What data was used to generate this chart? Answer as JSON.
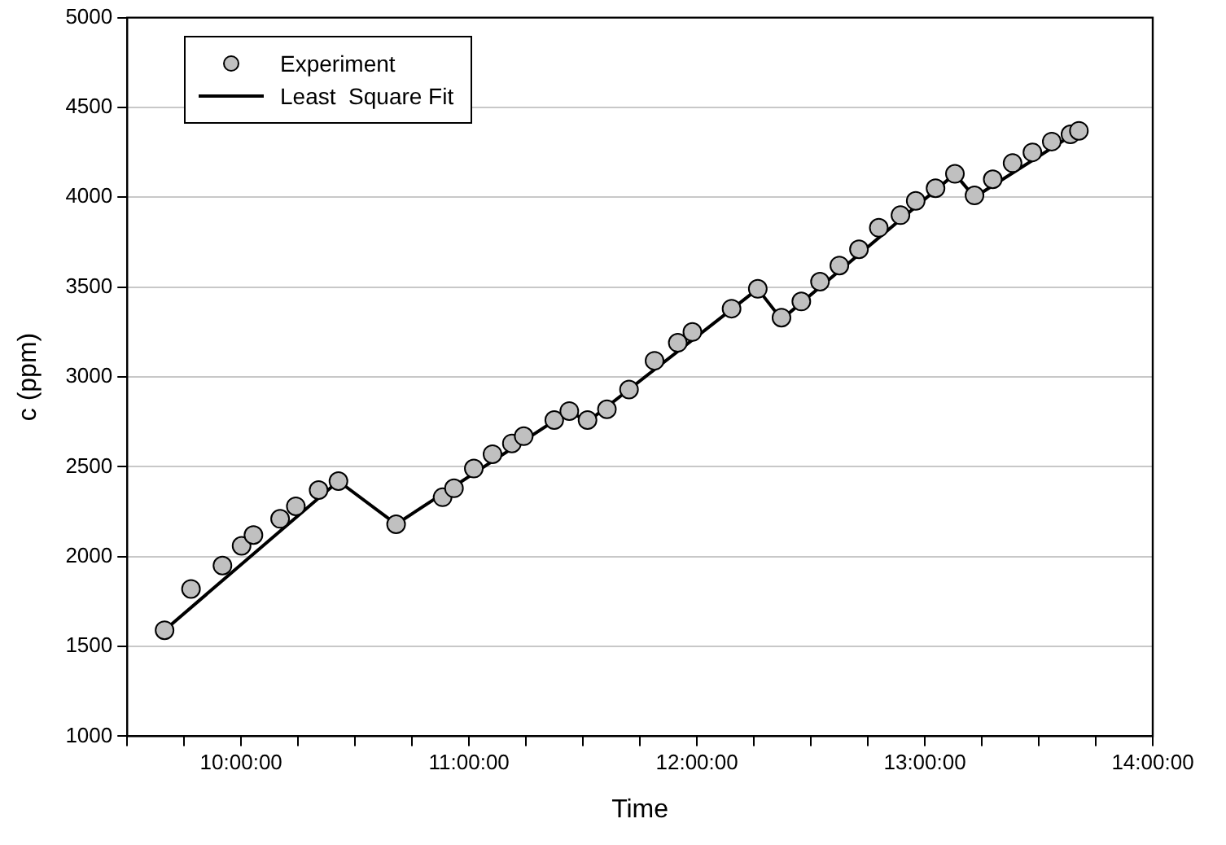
{
  "chart_data": {
    "type": "scatter",
    "xlabel": "Time",
    "ylabel": "c (ppm)",
    "xlim": [
      9.5,
      14
    ],
    "ylim": [
      1000,
      5000
    ],
    "xticks": [
      {
        "value": 9.5,
        "label": null
      },
      {
        "value": 9.75,
        "label": null
      },
      {
        "value": 10,
        "label": "10:00:00"
      },
      {
        "value": 10.25,
        "label": null
      },
      {
        "value": 10.5,
        "label": null
      },
      {
        "value": 10.75,
        "label": null
      },
      {
        "value": 11,
        "label": "11:00:00"
      },
      {
        "value": 11.25,
        "label": null
      },
      {
        "value": 11.5,
        "label": null
      },
      {
        "value": 11.75,
        "label": null
      },
      {
        "value": 12,
        "label": "12:00:00"
      },
      {
        "value": 12.25,
        "label": null
      },
      {
        "value": 12.5,
        "label": null
      },
      {
        "value": 12.75,
        "label": null
      },
      {
        "value": 13,
        "label": "13:00:00"
      },
      {
        "value": 13.25,
        "label": null
      },
      {
        "value": 13.5,
        "label": null
      },
      {
        "value": 13.75,
        "label": null
      },
      {
        "value": 14,
        "label": "14:00:00"
      }
    ],
    "yticks": [
      1000,
      1500,
      2000,
      2500,
      3000,
      3500,
      4000,
      4500,
      5000
    ],
    "grid": "y",
    "legend": "top left",
    "series": [
      {
        "name": "Experiment",
        "type": "scatter",
        "marker": "circle",
        "color": "#c0c0c0",
        "x": [
          9.664,
          9.78,
          9.918,
          10.002,
          10.054,
          10.171,
          10.24,
          10.34,
          10.427,
          10.68,
          10.884,
          10.934,
          11.021,
          11.103,
          11.188,
          11.24,
          11.374,
          11.44,
          11.52,
          11.605,
          11.702,
          11.814,
          11.916,
          11.98,
          12.152,
          12.267,
          12.371,
          12.458,
          12.54,
          12.625,
          12.711,
          12.798,
          12.893,
          12.96,
          13.047,
          13.132,
          13.218,
          13.298,
          13.385,
          13.472,
          13.557,
          13.639,
          13.676
        ],
        "values": [
          1590,
          1820,
          1950,
          2060,
          2120,
          2210,
          2280,
          2370,
          2420,
          2180,
          2330,
          2380,
          2490,
          2570,
          2630,
          2670,
          2760,
          2810,
          2760,
          2820,
          2930,
          3090,
          3190,
          3250,
          3380,
          3490,
          3330,
          3420,
          3530,
          3620,
          3710,
          3830,
          3900,
          3980,
          4050,
          4130,
          4010,
          4100,
          4190,
          4250,
          4310,
          4350,
          4370
        ]
      },
      {
        "name": "Least  Square Fit",
        "type": "line",
        "marker": "none",
        "color": "#000000",
        "x": [
          9.664,
          10.427,
          10.68,
          11.44,
          11.52,
          12.267,
          12.371,
          13.132,
          13.218,
          13.676
        ],
        "values": [
          1590,
          2420,
          2180,
          2810,
          2750,
          3490,
          3320,
          4130,
          4000,
          4370
        ]
      }
    ]
  }
}
